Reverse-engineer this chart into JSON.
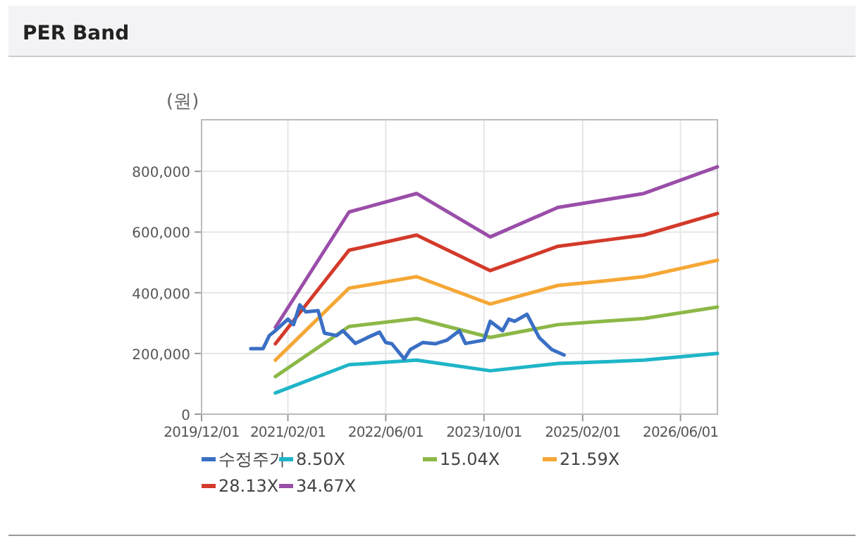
{
  "chart_data": {
    "type": "line",
    "title": "PER Band",
    "ylabel": "(원)",
    "xlim": [
      "2019-12-01",
      "2026-12-01"
    ],
    "ylim": [
      0,
      970000
    ],
    "xticks": [
      {
        "value": "2019-12-01",
        "label": "2019/12/01"
      },
      {
        "value": "2021-02-01",
        "label": "2021/02/01"
      },
      {
        "value": "2022-06-01",
        "label": "2022/06/01"
      },
      {
        "value": "2023-10-01",
        "label": "2023/10/01"
      },
      {
        "value": "2025-02-01",
        "label": "2025/02/01"
      },
      {
        "value": "2026-06-01",
        "label": "2026/06/01"
      }
    ],
    "yticks": [
      {
        "value": 0,
        "label": "0"
      },
      {
        "value": 200000,
        "label": "200,000"
      },
      {
        "value": 400000,
        "label": "400,000"
      },
      {
        "value": 600000,
        "label": "600,000"
      },
      {
        "value": 800000,
        "label": "800,000"
      }
    ],
    "grid": true,
    "legend": "bottom",
    "marker": "none",
    "line_style": "solid",
    "series": [
      {
        "name": "수정주가",
        "color": "#3a6fc4",
        "x": [
          "2020-08",
          "2020-10",
          "2020-11",
          "2020-12",
          "2021-02",
          "2021-03",
          "2021-04",
          "2021-05",
          "2021-07",
          "2021-08",
          "2021-10",
          "2021-11",
          "2022-01",
          "2022-03",
          "2022-05",
          "2022-06",
          "2022-07",
          "2022-09",
          "2022-10",
          "2022-12",
          "2023-02",
          "2023-04",
          "2023-06",
          "2023-07",
          "2023-10",
          "2023-11",
          "2024-01",
          "2024-02",
          "2024-03",
          "2024-05",
          "2024-07",
          "2024-09",
          "2024-11"
        ],
        "values": [
          216000,
          216000,
          259000,
          275000,
          313000,
          295000,
          360000,
          337000,
          341000,
          267000,
          259000,
          275000,
          233000,
          252000,
          270000,
          236000,
          232000,
          182000,
          213000,
          236000,
          232000,
          244000,
          275000,
          233000,
          244000,
          306000,
          275000,
          313000,
          306000,
          329000,
          252000,
          213000,
          195000
        ]
      },
      {
        "name": "8.50X",
        "color": "#1fb5c8",
        "x": [
          "2020-12",
          "2021-12",
          "2022-11",
          "2023-11",
          "2024-10",
          "2025-06",
          "2025-12",
          "2026-12"
        ],
        "values": [
          70000,
          163000,
          178000,
          143000,
          167000,
          173000,
          178000,
          200000
        ]
      },
      {
        "name": "15.04X",
        "color": "#8cb847",
        "x": [
          "2020-12",
          "2021-12",
          "2022-11",
          "2023-11",
          "2024-10",
          "2025-06",
          "2025-12",
          "2026-12"
        ],
        "values": [
          124000,
          289000,
          315000,
          253000,
          295000,
          307000,
          315000,
          353000
        ]
      },
      {
        "name": "21.59X",
        "color": "#f5a735",
        "x": [
          "2020-12",
          "2021-12",
          "2022-11",
          "2023-11",
          "2024-10",
          "2025-06",
          "2025-12",
          "2026-12"
        ],
        "values": [
          178000,
          415000,
          453000,
          363000,
          424000,
          440000,
          453000,
          507000
        ]
      },
      {
        "name": "28.13X",
        "color": "#d33a2a",
        "x": [
          "2020-12",
          "2021-12",
          "2022-11",
          "2023-11",
          "2024-10",
          "2025-06",
          "2025-12",
          "2026-12"
        ],
        "values": [
          232000,
          540000,
          590000,
          473000,
          553000,
          574000,
          590000,
          661000
        ]
      },
      {
        "name": "34.67X",
        "color": "#9a4ea8",
        "x": [
          "2020-12",
          "2021-12",
          "2022-11",
          "2023-11",
          "2024-10",
          "2025-06",
          "2025-12",
          "2026-12"
        ],
        "values": [
          286000,
          666000,
          727000,
          584000,
          681000,
          707000,
          727000,
          815000
        ]
      }
    ]
  }
}
